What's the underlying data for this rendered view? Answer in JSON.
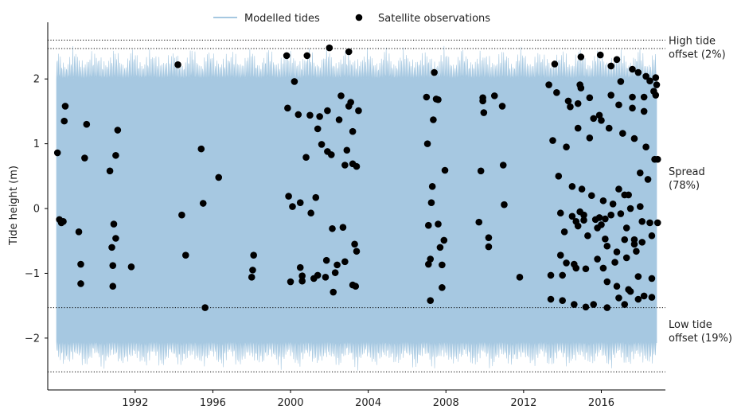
{
  "chart_data": {
    "type": "line",
    "title": "",
    "xlabel": "",
    "ylabel": "Tide height (m)",
    "xlim": [
      1987.5,
      2019.3
    ],
    "ylim": [
      -2.8,
      2.85
    ],
    "x_ticks": [
      1992,
      1996,
      2000,
      2004,
      2008,
      2012,
      2016
    ],
    "y_ticks": [
      -2,
      -1,
      0,
      1,
      2
    ],
    "y_tick_labels": [
      "−2",
      "−1",
      "0",
      "1",
      "2"
    ],
    "grid": false,
    "legend": {
      "placement": "top-center",
      "entries": [
        {
          "label": "Modelled tides",
          "kind": "line",
          "color": "#a6c8e1"
        },
        {
          "label": "Satellite observations",
          "kind": "marker",
          "color": "#000000"
        }
      ]
    },
    "colors": {
      "modelled": "#a6c8e1",
      "observed": "#000000",
      "axis": "#000000"
    },
    "modelled_tides": {
      "x_start": 1987.95,
      "x_end": 2018.85,
      "envelope_high": 2.55,
      "envelope_low": -2.52,
      "typical_high": 2.0,
      "typical_low": -2.05
    },
    "reference_lines": [
      {
        "y": 2.6,
        "style": "dotted"
      },
      {
        "y": 2.47,
        "style": "dotted"
      },
      {
        "y": -1.53,
        "style": "dotted"
      },
      {
        "y": -2.52,
        "style": "dotted"
      }
    ],
    "annotations": [
      {
        "lines": [
          "High tide",
          "offset (2%)"
        ],
        "y": 2.5
      },
      {
        "lines": [
          "Spread",
          "(78%)"
        ],
        "y": 0.48
      },
      {
        "lines": [
          "Low tide",
          "offset (19%)"
        ],
        "y": -1.88
      }
    ],
    "series": [
      {
        "name": "Satellite observations",
        "points": [
          [
            1988.0,
            0.86
          ],
          [
            1988.1,
            -0.17
          ],
          [
            1988.2,
            -0.22
          ],
          [
            1988.3,
            -0.2
          ],
          [
            1988.4,
            1.58
          ],
          [
            1988.35,
            1.35
          ],
          [
            1989.1,
            -0.36
          ],
          [
            1989.2,
            -0.86
          ],
          [
            1989.2,
            -1.16
          ],
          [
            1989.4,
            0.78
          ],
          [
            1989.5,
            1.3
          ],
          [
            1990.7,
            0.58
          ],
          [
            1990.8,
            -0.6
          ],
          [
            1990.85,
            -0.88
          ],
          [
            1990.85,
            -1.2
          ],
          [
            1990.9,
            -0.24
          ],
          [
            1991.0,
            -0.46
          ],
          [
            1991.0,
            0.82
          ],
          [
            1991.1,
            1.21
          ],
          [
            1991.8,
            -0.9
          ],
          [
            1994.2,
            2.22
          ],
          [
            1994.4,
            -0.1
          ],
          [
            1994.6,
            -0.72
          ],
          [
            1995.4,
            0.92
          ],
          [
            1995.5,
            0.08
          ],
          [
            1995.6,
            -1.53
          ],
          [
            1996.3,
            0.48
          ],
          [
            1998.0,
            -1.06
          ],
          [
            1998.05,
            -0.95
          ],
          [
            1998.1,
            -0.72
          ],
          [
            1999.8,
            2.36
          ],
          [
            1999.85,
            1.55
          ],
          [
            1999.9,
            0.19
          ],
          [
            2000.0,
            -1.13
          ],
          [
            2000.1,
            0.03
          ],
          [
            2000.2,
            1.96
          ],
          [
            2000.4,
            1.45
          ],
          [
            2000.5,
            0.09
          ],
          [
            2000.5,
            -0.91
          ],
          [
            2000.6,
            -1.12
          ],
          [
            2000.6,
            -1.04
          ],
          [
            2000.8,
            0.79
          ],
          [
            2000.85,
            2.36
          ],
          [
            2001.0,
            1.44
          ],
          [
            2001.05,
            -0.07
          ],
          [
            2001.2,
            -1.08
          ],
          [
            2001.3,
            0.17
          ],
          [
            2001.4,
            -1.03
          ],
          [
            2001.4,
            1.23
          ],
          [
            2001.5,
            1.42
          ],
          [
            2001.6,
            0.99
          ],
          [
            2001.8,
            -1.06
          ],
          [
            2001.85,
            -0.8
          ],
          [
            2001.9,
            1.51
          ],
          [
            2001.9,
            0.88
          ],
          [
            2002.0,
            2.48
          ],
          [
            2002.1,
            0.83
          ],
          [
            2002.15,
            -0.31
          ],
          [
            2002.2,
            -1.29
          ],
          [
            2002.3,
            -0.99
          ],
          [
            2002.4,
            -0.87
          ],
          [
            2002.5,
            1.37
          ],
          [
            2002.6,
            1.74
          ],
          [
            2002.7,
            -0.29
          ],
          [
            2002.8,
            -0.82
          ],
          [
            2002.8,
            0.67
          ],
          [
            2002.9,
            0.9
          ],
          [
            2003.0,
            1.58
          ],
          [
            2003.0,
            2.42
          ],
          [
            2003.1,
            1.64
          ],
          [
            2003.2,
            1.19
          ],
          [
            2003.2,
            0.69
          ],
          [
            2003.2,
            -1.18
          ],
          [
            2003.3,
            -0.55
          ],
          [
            2003.35,
            -1.2
          ],
          [
            2003.4,
            -0.66
          ],
          [
            2003.5,
            1.51
          ],
          [
            2003.4,
            0.65
          ],
          [
            2007.0,
            1.72
          ],
          [
            2007.05,
            1.0
          ],
          [
            2007.1,
            -0.26
          ],
          [
            2007.1,
            -0.86
          ],
          [
            2007.2,
            -1.42
          ],
          [
            2007.2,
            -0.78
          ],
          [
            2007.25,
            0.09
          ],
          [
            2007.3,
            0.34
          ],
          [
            2007.35,
            1.37
          ],
          [
            2007.4,
            2.1
          ],
          [
            2007.5,
            1.69
          ],
          [
            2007.6,
            1.68
          ],
          [
            2007.6,
            -0.24
          ],
          [
            2007.7,
            -0.6
          ],
          [
            2007.8,
            -0.87
          ],
          [
            2007.8,
            -1.22
          ],
          [
            2007.9,
            -0.49
          ],
          [
            2007.95,
            0.59
          ],
          [
            2009.7,
            -0.21
          ],
          [
            2009.8,
            0.58
          ],
          [
            2009.9,
            1.66
          ],
          [
            2009.9,
            1.71
          ],
          [
            2009.95,
            1.48
          ],
          [
            2010.2,
            -0.45
          ],
          [
            2010.2,
            -0.59
          ],
          [
            2010.5,
            1.74
          ],
          [
            2010.9,
            1.58
          ],
          [
            2010.95,
            0.67
          ],
          [
            2011.0,
            0.06
          ],
          [
            2011.8,
            -1.06
          ],
          [
            2013.3,
            1.91
          ],
          [
            2013.4,
            -1.03
          ],
          [
            2013.4,
            -1.4
          ],
          [
            2013.5,
            1.05
          ],
          [
            2013.6,
            2.23
          ],
          [
            2013.7,
            1.79
          ],
          [
            2013.8,
            0.5
          ],
          [
            2013.9,
            -0.07
          ],
          [
            2013.9,
            -0.72
          ],
          [
            2014.0,
            -1.03
          ],
          [
            2014.0,
            -1.42
          ],
          [
            2014.1,
            -0.36
          ],
          [
            2014.2,
            0.95
          ],
          [
            2014.3,
            1.66
          ],
          [
            2014.4,
            1.57
          ],
          [
            2014.5,
            0.34
          ],
          [
            2014.5,
            -0.12
          ],
          [
            2014.6,
            -0.86
          ],
          [
            2014.6,
            -1.48
          ],
          [
            2014.7,
            -0.92
          ],
          [
            2014.8,
            -0.27
          ],
          [
            2014.8,
            1.24
          ],
          [
            2014.8,
            1.62
          ],
          [
            2014.9,
            1.91
          ],
          [
            2014.95,
            1.86
          ],
          [
            2014.95,
            2.34
          ],
          [
            2015.0,
            0.3
          ],
          [
            2015.1,
            -0.1
          ],
          [
            2015.2,
            -0.93
          ],
          [
            2015.2,
            -1.52
          ],
          [
            2015.3,
            -0.42
          ],
          [
            2015.4,
            1.09
          ],
          [
            2015.4,
            1.71
          ],
          [
            2015.5,
            0.2
          ],
          [
            2015.6,
            1.39
          ],
          [
            2015.7,
            -0.17
          ],
          [
            2015.8,
            -0.3
          ],
          [
            2015.8,
            -0.78
          ],
          [
            2015.9,
            1.44
          ],
          [
            2015.95,
            2.37
          ],
          [
            2016.0,
            1.36
          ],
          [
            2016.1,
            0.12
          ],
          [
            2016.2,
            -0.16
          ],
          [
            2016.2,
            -0.47
          ],
          [
            2016.3,
            -1.13
          ],
          [
            2016.3,
            -1.53
          ],
          [
            2016.4,
            1.24
          ],
          [
            2016.5,
            1.75
          ],
          [
            2016.5,
            2.2
          ],
          [
            2016.6,
            0.07
          ],
          [
            2016.7,
            -0.83
          ],
          [
            2016.8,
            -0.67
          ],
          [
            2016.8,
            -1.2
          ],
          [
            2016.9,
            0.3
          ],
          [
            2016.9,
            1.6
          ],
          [
            2017.0,
            1.96
          ],
          [
            2017.1,
            1.16
          ],
          [
            2017.2,
            0.21
          ],
          [
            2017.3,
            -0.3
          ],
          [
            2017.3,
            -0.76
          ],
          [
            2017.4,
            0.21
          ],
          [
            2017.4,
            -1.25
          ],
          [
            2017.5,
            0.0
          ],
          [
            2017.6,
            1.55
          ],
          [
            2017.7,
            1.08
          ],
          [
            2017.7,
            -0.48
          ],
          [
            2017.8,
            -0.66
          ],
          [
            2017.9,
            -1.05
          ],
          [
            2018.0,
            0.03
          ],
          [
            2018.0,
            0.55
          ],
          [
            2018.1,
            -0.52
          ],
          [
            2018.2,
            1.5
          ],
          [
            2018.2,
            1.72
          ],
          [
            2018.3,
            0.95
          ],
          [
            2018.3,
            2.04
          ],
          [
            2018.4,
            0.45
          ],
          [
            2018.5,
            1.97
          ],
          [
            2018.5,
            -0.22
          ],
          [
            2018.6,
            -0.42
          ],
          [
            2018.6,
            -1.08
          ],
          [
            2018.7,
            1.81
          ],
          [
            2018.75,
            0.76
          ],
          [
            2018.8,
            1.75
          ],
          [
            2018.8,
            2.02
          ],
          [
            2018.85,
            1.91
          ],
          [
            2018.9,
            -0.22
          ],
          [
            2018.9,
            0.76
          ],
          [
            2017.9,
            -1.4
          ],
          [
            2018.2,
            -1.35
          ],
          [
            2018.6,
            -1.37
          ],
          [
            2017.5,
            -1.28
          ],
          [
            2017.2,
            -1.48
          ],
          [
            2016.9,
            -1.38
          ],
          [
            2016.8,
            2.3
          ],
          [
            2017.6,
            1.72
          ],
          [
            2017.9,
            2.1
          ],
          [
            2017.6,
            2.15
          ],
          [
            2018.1,
            -0.2
          ],
          [
            2017.7,
            -0.55
          ],
          [
            2016.1,
            -0.92
          ],
          [
            2015.6,
            -1.48
          ],
          [
            2014.2,
            -0.84
          ],
          [
            2014.7,
            -0.2
          ],
          [
            2015.1,
            -0.18
          ],
          [
            2016.0,
            -0.25
          ],
          [
            2016.5,
            -0.1
          ],
          [
            2017.0,
            -0.08
          ],
          [
            2017.2,
            -0.48
          ],
          [
            2016.3,
            -0.58
          ],
          [
            2015.9,
            -0.14
          ],
          [
            2014.9,
            -0.05
          ]
        ]
      }
    ]
  }
}
